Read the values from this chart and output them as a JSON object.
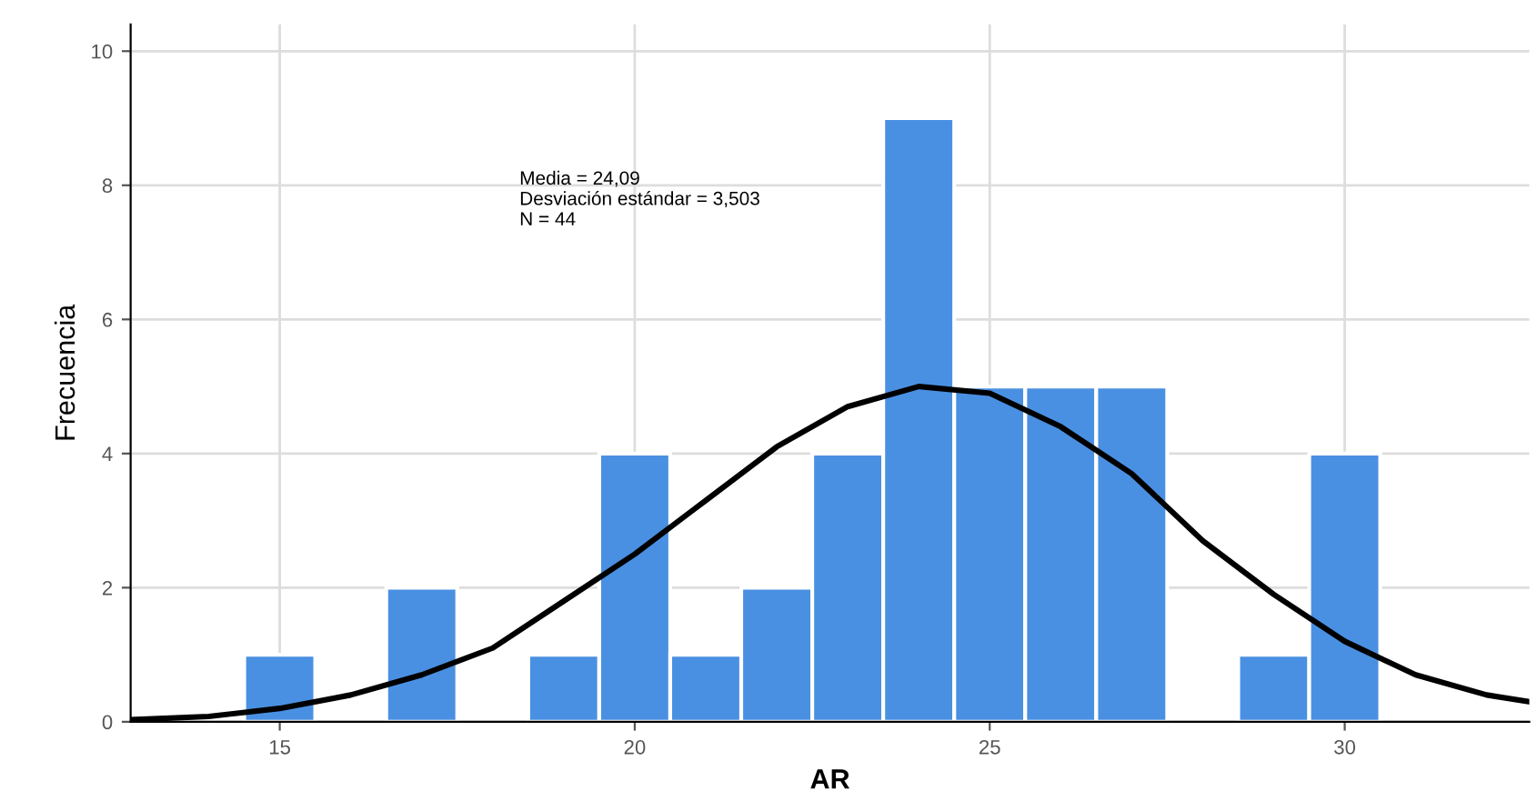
{
  "chart_data": {
    "type": "histogram",
    "xlabel": "AR",
    "ylabel": "Frecuencia",
    "bins": [
      14.5,
      15.5,
      16.5,
      17.5,
      18.5,
      19.5,
      20.5,
      21.5,
      22.5,
      23.5,
      24.5,
      25.5,
      26.5,
      27.5,
      28.5,
      29.5,
      30.5
    ],
    "values": [
      1,
      0,
      2,
      0,
      1,
      4,
      1,
      2,
      4,
      9,
      5,
      5,
      5,
      0,
      1,
      4
    ],
    "color": "#4a90e2",
    "series": [
      {
        "type": "line",
        "color": "#000000",
        "x": [
          12.9,
          14,
          15,
          16,
          17,
          18,
          19,
          20,
          21,
          22,
          23,
          24,
          25,
          26,
          27,
          28,
          29,
          30,
          31,
          32,
          32.6
        ],
        "values": [
          0.03,
          0.08,
          0.2,
          0.4,
          0.7,
          1.1,
          1.8,
          2.5,
          3.3,
          4.1,
          4.7,
          5.0,
          4.9,
          4.4,
          3.7,
          2.7,
          1.9,
          1.2,
          0.7,
          0.4,
          0.3
        ]
      }
    ],
    "annotations": [
      "Media = 24,09\nDesviación estándar = 3,503\nN = 44"
    ],
    "xlim": [
      12.9,
      32.6
    ],
    "ylim": [
      0,
      10.4
    ],
    "xticks": [
      15,
      20,
      25,
      30
    ],
    "yticks": [
      0,
      2,
      4,
      6,
      8,
      10
    ],
    "grid": true,
    "legend": false
  }
}
